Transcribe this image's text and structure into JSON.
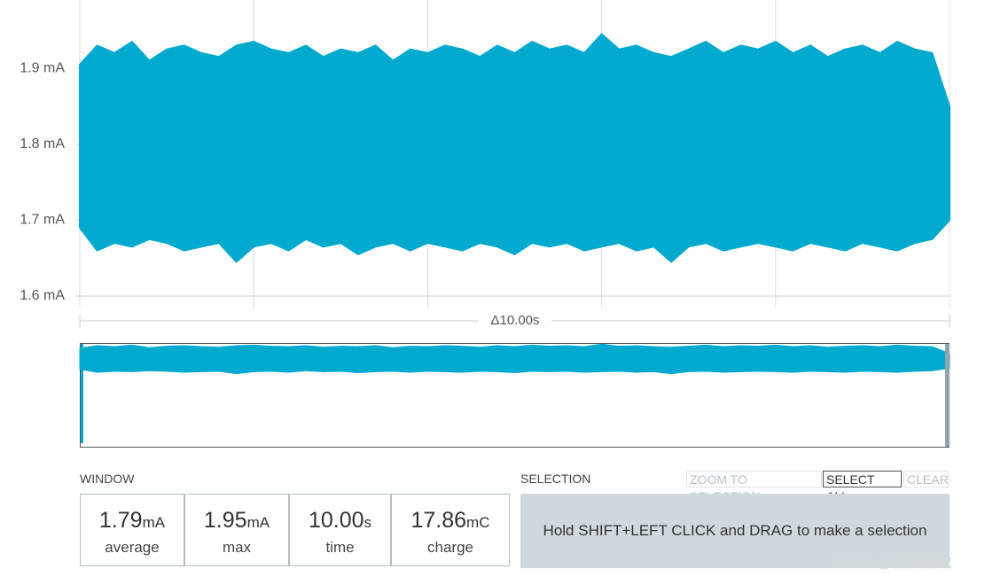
{
  "chart_data": {
    "type": "band",
    "ylim": [
      1.6,
      1.99
    ],
    "yticks": [
      {
        "value": 1.6,
        "label": "1.6 mA"
      },
      {
        "value": 1.7,
        "label": "1.7 mA"
      },
      {
        "value": 1.8,
        "label": "1.8 mA"
      },
      {
        "value": 1.9,
        "label": "1.9 mA"
      }
    ],
    "xlim": [
      0,
      10
    ],
    "xticks": [
      0,
      2,
      4,
      6,
      8,
      10
    ],
    "grid": true,
    "window_label": "Δ10.00s",
    "series": [
      {
        "color": "#00a9ce",
        "x": [
          0,
          0.2,
          0.4,
          0.6,
          0.8,
          1,
          1.2,
          1.4,
          1.6,
          1.8,
          2,
          2.2,
          2.4,
          2.6,
          2.8,
          3,
          3.2,
          3.4,
          3.6,
          3.8,
          4,
          4.2,
          4.4,
          4.6,
          4.8,
          5,
          5.2,
          5.4,
          5.6,
          5.8,
          6,
          6.2,
          6.4,
          6.6,
          6.8,
          7,
          7.2,
          7.4,
          7.6,
          7.8,
          8,
          8.2,
          8.4,
          8.6,
          8.8,
          9,
          9.2,
          9.4,
          9.6,
          9.8,
          10
        ],
        "high": [
          1.905,
          1.93,
          1.92,
          1.935,
          1.91,
          1.925,
          1.93,
          1.92,
          1.915,
          1.93,
          1.935,
          1.925,
          1.92,
          1.93,
          1.915,
          1.925,
          1.92,
          1.93,
          1.91,
          1.925,
          1.92,
          1.93,
          1.925,
          1.915,
          1.93,
          1.92,
          1.935,
          1.925,
          1.93,
          1.92,
          1.945,
          1.925,
          1.93,
          1.92,
          1.915,
          1.925,
          1.935,
          1.92,
          1.93,
          1.925,
          1.935,
          1.92,
          1.93,
          1.915,
          1.925,
          1.93,
          1.92,
          1.935,
          1.925,
          1.92,
          1.85
        ],
        "low": [
          1.69,
          1.66,
          1.67,
          1.665,
          1.675,
          1.67,
          1.66,
          1.665,
          1.67,
          1.645,
          1.665,
          1.67,
          1.66,
          1.675,
          1.665,
          1.67,
          1.655,
          1.665,
          1.67,
          1.66,
          1.67,
          1.665,
          1.66,
          1.67,
          1.665,
          1.655,
          1.67,
          1.665,
          1.67,
          1.66,
          1.665,
          1.67,
          1.66,
          1.665,
          1.645,
          1.665,
          1.67,
          1.66,
          1.665,
          1.67,
          1.665,
          1.66,
          1.67,
          1.665,
          1.66,
          1.67,
          1.665,
          1.66,
          1.67,
          1.675,
          1.7
        ]
      }
    ]
  },
  "window": {
    "title": "WINDOW",
    "stats": [
      {
        "value": "1.79",
        "unit": "mA",
        "label": "average"
      },
      {
        "value": "1.95",
        "unit": "mA",
        "label": "max"
      },
      {
        "value": "10.00",
        "unit": "s",
        "label": "time"
      },
      {
        "value": "17.86",
        "unit": "mC",
        "label": "charge"
      }
    ]
  },
  "selection": {
    "title": "SELECTION",
    "buttons": [
      "ZOOM TO SELECTION",
      "SELECT ALL",
      "CLEAR"
    ],
    "message": "Hold SHIFT+LEFT CLICK and DRAG to make a selection"
  },
  "watermark": "CSDN @矜辰所致"
}
